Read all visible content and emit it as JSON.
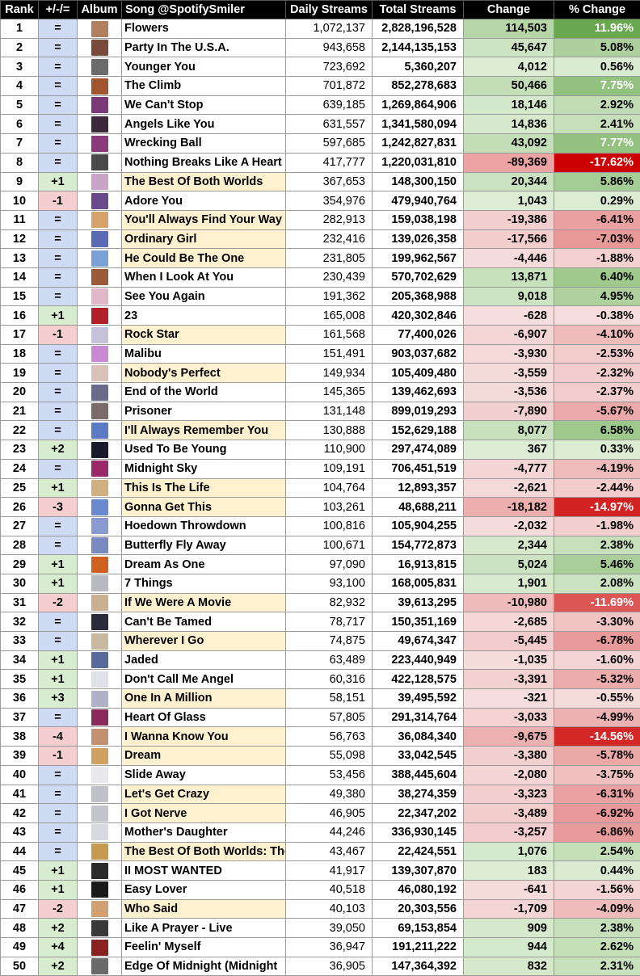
{
  "headers": {
    "rank": "Rank",
    "move": "+/-/=",
    "album": "Album",
    "song": "Song @SpotifySmiler",
    "daily": "Daily Streams",
    "total": "Total Streams",
    "change": "Change",
    "pct": "% Change"
  },
  "rows": [
    {
      "rank": "1",
      "move": "=",
      "song": "Flowers",
      "daily": "1,072,137",
      "total": "2,828,196,528",
      "change": "114,503",
      "pct": "11.96%",
      "pct_value": 11.96,
      "cover": "#b08060",
      "era": "a"
    },
    {
      "rank": "2",
      "move": "=",
      "song": "Party In The U.S.A.",
      "daily": "943,658",
      "total": "2,144,135,153",
      "change": "45,647",
      "pct": "5.08%",
      "pct_value": 5.08,
      "cover": "#7a4a3a",
      "era": "a"
    },
    {
      "rank": "3",
      "move": "=",
      "song": "Younger You",
      "daily": "723,692",
      "total": "5,360,207",
      "change": "4,012",
      "pct": "0.56%",
      "pct_value": 0.56,
      "cover": "#6b6b6b",
      "era": "a"
    },
    {
      "rank": "4",
      "move": "=",
      "song": "The Climb",
      "daily": "701,872",
      "total": "852,278,683",
      "change": "50,466",
      "pct": "7.75%",
      "pct_value": 7.75,
      "cover": "#a0552e",
      "era": "a"
    },
    {
      "rank": "5",
      "move": "=",
      "song": "We Can't Stop",
      "daily": "639,185",
      "total": "1,269,864,906",
      "change": "18,146",
      "pct": "2.92%",
      "pct_value": 2.92,
      "cover": "#7a3a7a",
      "era": "a"
    },
    {
      "rank": "6",
      "move": "=",
      "song": "Angels Like You",
      "daily": "631,557",
      "total": "1,341,580,094",
      "change": "14,836",
      "pct": "2.41%",
      "pct_value": 2.41,
      "cover": "#3a2a3a",
      "era": "a"
    },
    {
      "rank": "7",
      "move": "=",
      "song": "Wrecking Ball",
      "daily": "597,685",
      "total": "1,242,827,831",
      "change": "43,092",
      "pct": "7.77%",
      "pct_value": 7.77,
      "cover": "#8a3a7a",
      "era": "a"
    },
    {
      "rank": "8",
      "move": "=",
      "song": "Nothing Breaks Like A Heart",
      "daily": "417,777",
      "total": "1,220,031,810",
      "change": "-89,369",
      "pct": "-17.62%",
      "pct_value": -17.62,
      "cover": "#4a4a4a",
      "era": "a"
    },
    {
      "rank": "9",
      "move": "+1",
      "song": "The Best Of Both Worlds",
      "daily": "367,653",
      "total": "148,300,150",
      "change": "20,344",
      "pct": "5.86%",
      "pct_value": 5.86,
      "cover": "#c9a4c6",
      "era": "b"
    },
    {
      "rank": "10",
      "move": "-1",
      "song": "Adore You",
      "daily": "354,976",
      "total": "479,940,764",
      "change": "1,043",
      "pct": "0.29%",
      "pct_value": 0.29,
      "cover": "#6a4a8a",
      "era": "a"
    },
    {
      "rank": "11",
      "move": "=",
      "song": "You'll Always Find Your Way",
      "daily": "282,913",
      "total": "159,038,198",
      "change": "-19,386",
      "pct": "-6.41%",
      "pct_value": -6.41,
      "cover": "#d7a36a",
      "era": "b"
    },
    {
      "rank": "12",
      "move": "=",
      "song": "Ordinary Girl",
      "daily": "232,416",
      "total": "139,026,358",
      "change": "-17,566",
      "pct": "-7.03%",
      "pct_value": -7.03,
      "cover": "#5a6ab4",
      "era": "b"
    },
    {
      "rank": "13",
      "move": "=",
      "song": "He Could Be The One",
      "daily": "231,805",
      "total": "199,962,567",
      "change": "-4,446",
      "pct": "-1.88%",
      "pct_value": -1.88,
      "cover": "#7aa0d6",
      "era": "b"
    },
    {
      "rank": "14",
      "move": "=",
      "song": "When I Look At You",
      "daily": "230,439",
      "total": "570,702,629",
      "change": "13,871",
      "pct": "6.40%",
      "pct_value": 6.4,
      "cover": "#9a5a3a",
      "era": "a"
    },
    {
      "rank": "15",
      "move": "=",
      "song": "See You Again",
      "daily": "191,362",
      "total": "205,368,988",
      "change": "9,018",
      "pct": "4.95%",
      "pct_value": 4.95,
      "cover": "#e0b8c8",
      "era": "a"
    },
    {
      "rank": "16",
      "move": "+1",
      "song": "23",
      "daily": "165,008",
      "total": "420,302,846",
      "change": "-628",
      "pct": "-0.38%",
      "pct_value": -0.38,
      "cover": "#b0202a",
      "era": "a"
    },
    {
      "rank": "17",
      "move": "-1",
      "song": "Rock Star",
      "daily": "161,568",
      "total": "77,400,026",
      "change": "-6,907",
      "pct": "-4.10%",
      "pct_value": -4.1,
      "cover": "#c6c2da",
      "era": "b"
    },
    {
      "rank": "18",
      "move": "=",
      "song": "Malibu",
      "daily": "151,491",
      "total": "903,037,682",
      "change": "-3,930",
      "pct": "-2.53%",
      "pct_value": -2.53,
      "cover": "#c88ad0",
      "era": "a"
    },
    {
      "rank": "19",
      "move": "=",
      "song": "Nobody's Perfect",
      "daily": "149,934",
      "total": "105,409,480",
      "change": "-3,559",
      "pct": "-2.32%",
      "pct_value": -2.32,
      "cover": "#d9c0b8",
      "era": "b"
    },
    {
      "rank": "20",
      "move": "=",
      "song": "End of the World",
      "daily": "145,365",
      "total": "139,462,693",
      "change": "-3,536",
      "pct": "-2.37%",
      "pct_value": -2.37,
      "cover": "#6a6a8a",
      "era": "a"
    },
    {
      "rank": "21",
      "move": "=",
      "song": "Prisoner",
      "daily": "131,148",
      "total": "899,019,293",
      "change": "-7,890",
      "pct": "-5.67%",
      "pct_value": -5.67,
      "cover": "#7a6a6a",
      "era": "a"
    },
    {
      "rank": "22",
      "move": "=",
      "song": "I'll Always Remember You",
      "daily": "130,888",
      "total": "152,629,188",
      "change": "8,077",
      "pct": "6.58%",
      "pct_value": 6.58,
      "cover": "#5a7ac4",
      "era": "b"
    },
    {
      "rank": "23",
      "move": "+2",
      "song": "Used To Be Young",
      "daily": "110,900",
      "total": "297,474,089",
      "change": "367",
      "pct": "0.33%",
      "pct_value": 0.33,
      "cover": "#1a1a2a",
      "era": "a"
    },
    {
      "rank": "24",
      "move": "=",
      "song": "Midnight Sky",
      "daily": "109,191",
      "total": "706,451,519",
      "change": "-4,777",
      "pct": "-4.19%",
      "pct_value": -4.19,
      "cover": "#9a2a6a",
      "era": "a"
    },
    {
      "rank": "25",
      "move": "+1",
      "song": "This Is The Life",
      "daily": "104,764",
      "total": "12,893,357",
      "change": "-2,621",
      "pct": "-2.44%",
      "pct_value": -2.44,
      "cover": "#d0b080",
      "era": "b"
    },
    {
      "rank": "26",
      "move": "-3",
      "song": "Gonna Get This",
      "daily": "103,261",
      "total": "48,688,211",
      "change": "-18,182",
      "pct": "-14.97%",
      "pct_value": -14.97,
      "cover": "#6a8ad0",
      "era": "b"
    },
    {
      "rank": "27",
      "move": "=",
      "song": "Hoedown Throwdown",
      "daily": "100,816",
      "total": "105,904,255",
      "change": "-2,032",
      "pct": "-1.98%",
      "pct_value": -1.98,
      "cover": "#8a9ad0",
      "era": "a"
    },
    {
      "rank": "28",
      "move": "=",
      "song": "Butterfly Fly Away",
      "daily": "100,671",
      "total": "154,772,873",
      "change": "2,344",
      "pct": "2.38%",
      "pct_value": 2.38,
      "cover": "#7a8ac0",
      "era": "a"
    },
    {
      "rank": "29",
      "move": "+1",
      "song": "Dream As One",
      "daily": "97,090",
      "total": "16,913,815",
      "change": "5,024",
      "pct": "5.46%",
      "pct_value": 5.46,
      "cover": "#d06020",
      "era": "a"
    },
    {
      "rank": "30",
      "move": "+1",
      "song": "7 Things",
      "daily": "93,100",
      "total": "168,005,831",
      "change": "1,901",
      "pct": "2.08%",
      "pct_value": 2.08,
      "cover": "#b8b8c0",
      "era": "a"
    },
    {
      "rank": "31",
      "move": "-2",
      "song": "If We Were A Movie",
      "daily": "82,932",
      "total": "39,613,295",
      "change": "-10,980",
      "pct": "-11.69%",
      "pct_value": -11.69,
      "cover": "#c8b090",
      "era": "b"
    },
    {
      "rank": "32",
      "move": "=",
      "song": "Can't Be Tamed",
      "daily": "78,717",
      "total": "150,351,169",
      "change": "-2,685",
      "pct": "-3.30%",
      "pct_value": -3.3,
      "cover": "#2a2a3a",
      "era": "a"
    },
    {
      "rank": "33",
      "move": "=",
      "song": "Wherever I Go",
      "daily": "74,875",
      "total": "49,674,347",
      "change": "-5,445",
      "pct": "-6.78%",
      "pct_value": -6.78,
      "cover": "#c8b8a0",
      "era": "b"
    },
    {
      "rank": "34",
      "move": "+1",
      "song": "Jaded",
      "daily": "63,489",
      "total": "223,440,949",
      "change": "-1,035",
      "pct": "-1.60%",
      "pct_value": -1.6,
      "cover": "#5a6a9a",
      "era": "a"
    },
    {
      "rank": "35",
      "move": "+1",
      "song": "Don't Call Me Angel",
      "daily": "60,316",
      "total": "422,128,575",
      "change": "-3,391",
      "pct": "-5.32%",
      "pct_value": -5.32,
      "cover": "#e0e0e8",
      "era": "a"
    },
    {
      "rank": "36",
      "move": "+3",
      "song": "One In A Million",
      "daily": "58,151",
      "total": "39,495,592",
      "change": "-321",
      "pct": "-0.55%",
      "pct_value": -0.55,
      "cover": "#b0b0c8",
      "era": "b"
    },
    {
      "rank": "37",
      "move": "=",
      "song": "Heart Of Glass",
      "daily": "57,805",
      "total": "291,314,764",
      "change": "-3,033",
      "pct": "-4.99%",
      "pct_value": -4.99,
      "cover": "#8a2a5a",
      "era": "a"
    },
    {
      "rank": "38",
      "move": "-4",
      "song": "I Wanna Know You",
      "daily": "56,763",
      "total": "36,084,340",
      "change": "-9,675",
      "pct": "-14.56%",
      "pct_value": -14.56,
      "cover": "#c09070",
      "era": "b"
    },
    {
      "rank": "39",
      "move": "-1",
      "song": "Dream",
      "daily": "55,098",
      "total": "33,042,545",
      "change": "-3,380",
      "pct": "-5.78%",
      "pct_value": -5.78,
      "cover": "#d0a060",
      "era": "b"
    },
    {
      "rank": "40",
      "move": "=",
      "song": "Slide Away",
      "daily": "53,456",
      "total": "388,445,604",
      "change": "-2,080",
      "pct": "-3.75%",
      "pct_value": -3.75,
      "cover": "#e8e8ec",
      "era": "a"
    },
    {
      "rank": "41",
      "move": "=",
      "song": "Let's Get Crazy",
      "daily": "49,380",
      "total": "38,274,359",
      "change": "-3,323",
      "pct": "-6.31%",
      "pct_value": -6.31,
      "cover": "#c0c0c8",
      "era": "b"
    },
    {
      "rank": "42",
      "move": "=",
      "song": "I Got Nerve",
      "daily": "46,905",
      "total": "22,347,202",
      "change": "-3,489",
      "pct": "-6.92%",
      "pct_value": -6.92,
      "cover": "#c4c4cc",
      "era": "b"
    },
    {
      "rank": "43",
      "move": "=",
      "song": "Mother's Daughter",
      "daily": "44,246",
      "total": "336,930,145",
      "change": "-3,257",
      "pct": "-6.86%",
      "pct_value": -6.86,
      "cover": "#d8d8e0",
      "era": "a"
    },
    {
      "rank": "44",
      "move": "=",
      "song": "The Best Of Both Worlds: The",
      "daily": "43,467",
      "total": "22,424,551",
      "change": "1,076",
      "pct": "2.54%",
      "pct_value": 2.54,
      "cover": "#c89a50",
      "era": "b"
    },
    {
      "rank": "45",
      "move": "+1",
      "song": "II MOST WANTED",
      "daily": "41,917",
      "total": "139,307,870",
      "change": "183",
      "pct": "0.44%",
      "pct_value": 0.44,
      "cover": "#2a2a2a",
      "era": "a"
    },
    {
      "rank": "46",
      "move": "+1",
      "song": "Easy Lover",
      "daily": "40,518",
      "total": "46,080,192",
      "change": "-641",
      "pct": "-1.56%",
      "pct_value": -1.56,
      "cover": "#1a1a1a",
      "era": "a"
    },
    {
      "rank": "47",
      "move": "-2",
      "song": "Who Said",
      "daily": "40,103",
      "total": "20,303,556",
      "change": "-1,709",
      "pct": "-4.09%",
      "pct_value": -4.09,
      "cover": "#d0a070",
      "era": "b"
    },
    {
      "rank": "48",
      "move": "+2",
      "song": "Like A Prayer - Live",
      "daily": "39,050",
      "total": "69,153,854",
      "change": "909",
      "pct": "2.38%",
      "pct_value": 2.38,
      "cover": "#3a3a3a",
      "era": "a"
    },
    {
      "rank": "49",
      "move": "+4",
      "song": "Feelin' Myself",
      "daily": "36,947",
      "total": "191,211,222",
      "change": "944",
      "pct": "2.62%",
      "pct_value": 2.62,
      "cover": "#8a2020",
      "era": "a"
    },
    {
      "rank": "50",
      "move": "+2",
      "song": "Edge Of Midnight (Midnight",
      "daily": "36,905",
      "total": "147,364,392",
      "change": "832",
      "pct": "2.31%",
      "pct_value": 2.31,
      "cover": "#6a6a6a",
      "era": "a"
    }
  ],
  "colors": {
    "header_bg": "#000000",
    "header_text": "#ffffff",
    "move_same": "#cfdaf5",
    "move_up": "#d8ecd0",
    "move_down": "#f5cfcf",
    "song_era_b": "#fdf1cf",
    "pos_strong": "#6aa84f",
    "neg_strong": "#cc0000"
  }
}
